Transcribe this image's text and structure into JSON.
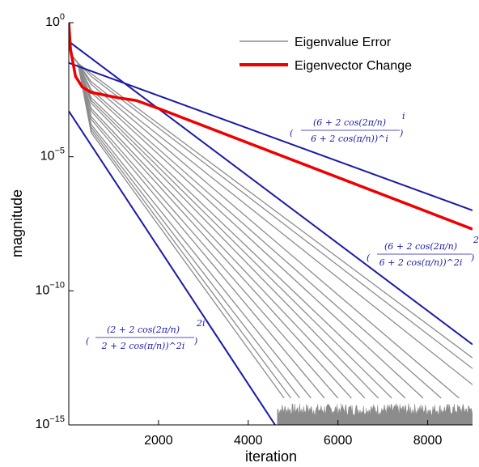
{
  "chart_data": {
    "type": "line",
    "title": "",
    "xlabel": "iteration",
    "ylabel": "magnitude",
    "xlim": [
      0,
      9000
    ],
    "ylim_log10": [
      -15,
      0
    ],
    "yscale": "log",
    "x_ticks": [
      2000,
      4000,
      6000,
      8000
    ],
    "x_tick_labels": [
      "2000",
      "4000",
      "6000",
      "8000"
    ],
    "y_ticks": [
      {
        "base": "10",
        "exp": "0",
        "value_log10": 0
      },
      {
        "base": "10",
        "exp": "−5",
        "value_log10": -5
      },
      {
        "base": "10",
        "exp": "−10",
        "value_log10": -10
      },
      {
        "base": "10",
        "exp": "−15",
        "value_log10": -15
      }
    ],
    "grid": false,
    "legend": {
      "placement": "top-right",
      "entries": [
        {
          "label": "Eigenvalue Error",
          "color": "#8c8c8c"
        },
        {
          "label": "Eigenvector Change",
          "color": "#ee0000"
        }
      ]
    },
    "colors": {
      "eigenvalue": "#8c8c8c",
      "eigenvector": "#ee0000",
      "bound": "#1a1aa8",
      "noise": "#8c8c8c"
    },
    "series": [
      {
        "name": "Eigenvector Change",
        "color": "#ee0000",
        "x": [
          0,
          40,
          150,
          300,
          500,
          800,
          1100,
          1500,
          2000,
          9000
        ],
        "y_log10": [
          0,
          -1.0,
          -2.0,
          -2.4,
          -2.6,
          -2.7,
          -2.8,
          -2.9,
          -3.2,
          -7.7
        ]
      },
      {
        "name": "Eigenvalue Error",
        "color": "#8c8c8c",
        "note": "many gray curves, each decaying with its own rate from near 10^-1 to the ~1e-14 noise floor",
        "curves": [
          {
            "x": [
              0,
              500,
              9000
            ],
            "y_log10": [
              -1.5,
              -1.9,
              -12.5
            ]
          },
          {
            "x": [
              0,
              500,
              9000
            ],
            "y_log10": [
              -1.5,
              -2.0,
              -12.9
            ]
          },
          {
            "x": [
              0,
              500,
              9000
            ],
            "y_log10": [
              -1.5,
              -2.2,
              -13.5
            ]
          },
          {
            "x": [
              0,
              500,
              8700
            ],
            "y_log10": [
              -1.5,
              -2.3,
              -14.0
            ]
          },
          {
            "x": [
              0,
              500,
              8300
            ],
            "y_log10": [
              -1.5,
              -2.5,
              -14.0
            ]
          },
          {
            "x": [
              0,
              500,
              7900
            ],
            "y_log10": [
              -1.5,
              -2.6,
              -14.0
            ]
          },
          {
            "x": [
              0,
              500,
              7500
            ],
            "y_log10": [
              -1.5,
              -2.8,
              -14.0
            ]
          },
          {
            "x": [
              0,
              500,
              7200
            ],
            "y_log10": [
              -1.5,
              -2.9,
              -14.0
            ]
          },
          {
            "x": [
              0,
              500,
              6900
            ],
            "y_log10": [
              -1.5,
              -3.0,
              -14.0
            ]
          },
          {
            "x": [
              0,
              500,
              6600
            ],
            "y_log10": [
              -1.5,
              -3.2,
              -14.0
            ]
          },
          {
            "x": [
              0,
              500,
              6300
            ],
            "y_log10": [
              -1.5,
              -3.3,
              -14.0
            ]
          },
          {
            "x": [
              0,
              500,
              6000
            ],
            "y_log10": [
              -1.5,
              -3.5,
              -14.0
            ]
          },
          {
            "x": [
              0,
              500,
              5700
            ],
            "y_log10": [
              -1.5,
              -3.6,
              -14.0
            ]
          },
          {
            "x": [
              0,
              500,
              5400
            ],
            "y_log10": [
              -1.5,
              -3.8,
              -14.0
            ]
          },
          {
            "x": [
              0,
              500,
              5150
            ],
            "y_log10": [
              -1.5,
              -3.9,
              -14.0
            ]
          },
          {
            "x": [
              0,
              500,
              4950
            ],
            "y_log10": [
              -1.5,
              -4.0,
              -14.0
            ]
          },
          {
            "x": [
              0,
              500,
              4800
            ],
            "y_log10": [
              -1.5,
              -4.1,
              -14.0
            ]
          }
        ],
        "noise_floor_log10": [
          -15,
          -14
        ],
        "noise_start_x": 4650
      }
    ],
    "bounds": [
      {
        "color": "#1a1aa8",
        "x": [
          0,
          9000
        ],
        "y_log10": [
          -1.5,
          -7.0
        ]
      },
      {
        "color": "#1a1aa8",
        "x": [
          0,
          9000
        ],
        "y_log10": [
          -0.7,
          -12.0
        ]
      },
      {
        "color": "#1a1aa8",
        "x": [
          0,
          4600
        ],
        "y_log10": [
          -3.3,
          -15
        ]
      }
    ],
    "annotations": [
      {
        "lines": [
          "(6 + 2 cos(2π/n)",
          "6 + 2 cos(π/n))^i"
        ]
      },
      {
        "lines": [
          "(6 + 2 cos(2π/n)",
          "6 + 2 cos(π/n))^2i"
        ]
      },
      {
        "lines": [
          "(2 + 2 cos(2π/n)",
          "2 + 2 cos(π/n))^2i"
        ]
      }
    ]
  }
}
